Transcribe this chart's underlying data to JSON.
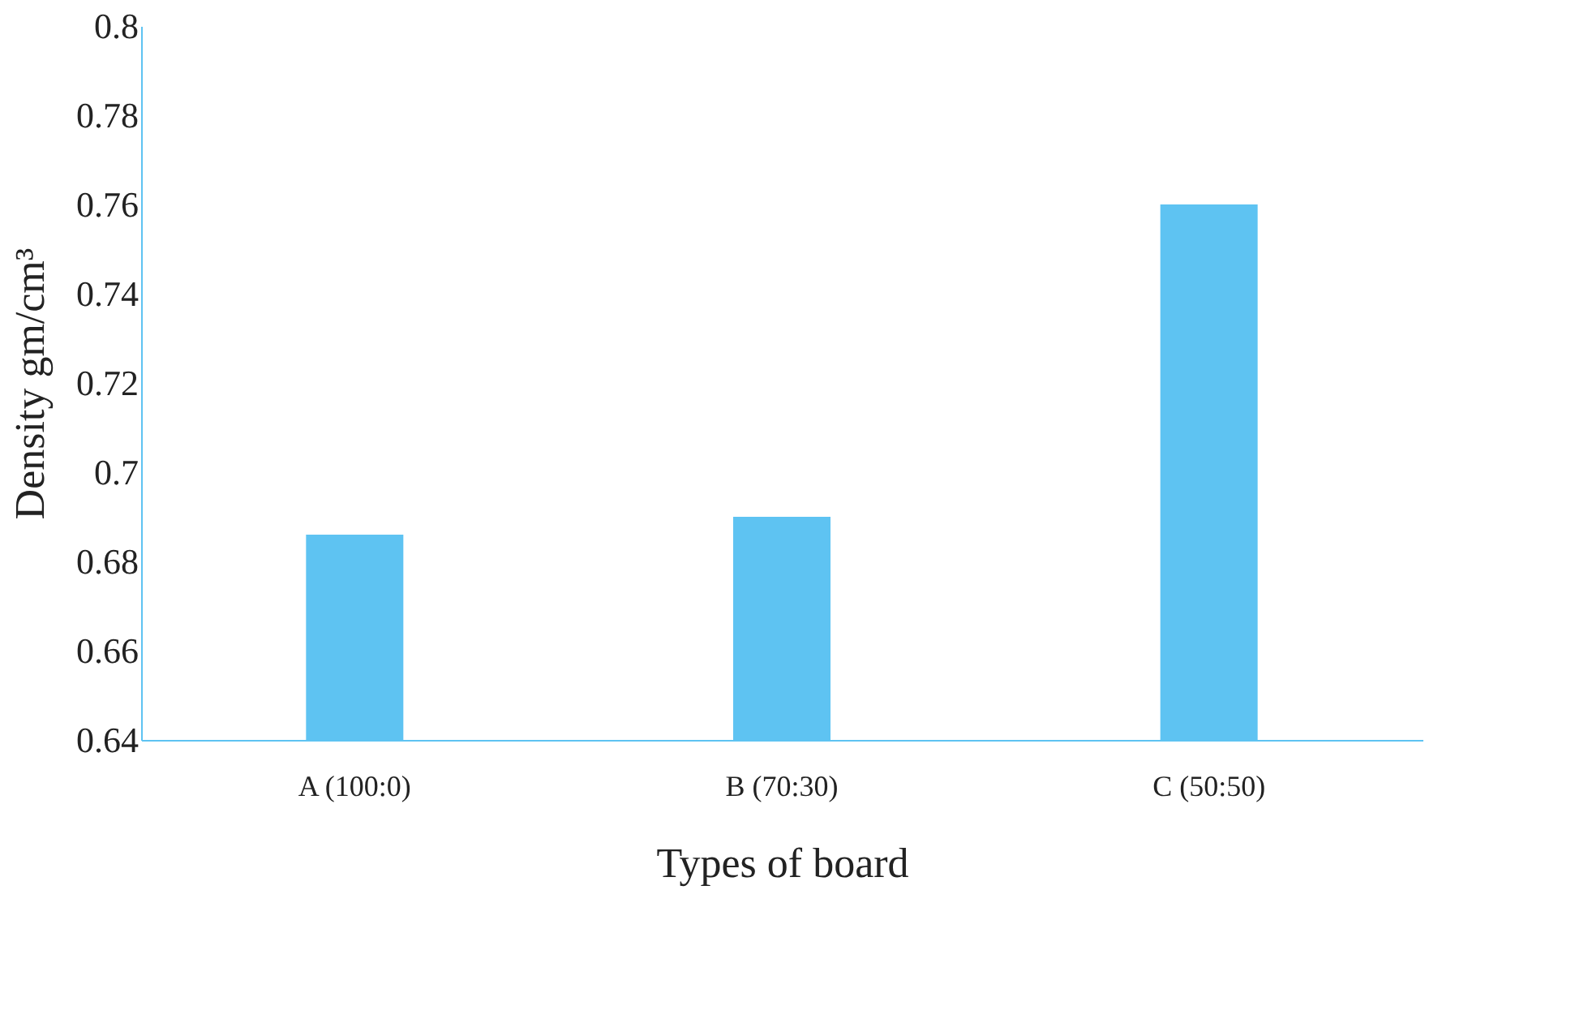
{
  "chart_data": {
    "type": "bar",
    "xlabel": "Types of board",
    "ylabel": "Density gm/cm³",
    "categories": [
      "A (100:0)",
      "B (70:30)",
      "C (50:50)"
    ],
    "values": [
      0.686,
      0.69,
      0.76
    ],
    "color": "#5ec3f2",
    "ylim": [
      0.64,
      0.8
    ],
    "yticks": [
      0.64,
      0.66,
      0.68,
      0.7,
      0.72,
      0.74,
      0.76,
      0.78,
      0.8
    ],
    "grid": false
  }
}
